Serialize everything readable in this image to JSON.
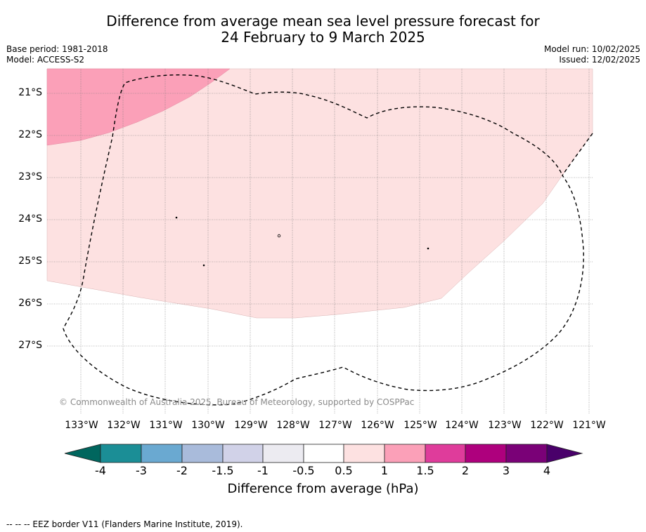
{
  "title_line1": "Difference from average mean sea level pressure forecast for",
  "title_line2": "24 February to 9 March 2025",
  "meta_left": [
    "Base period: 1981-2018",
    "Model: ACCESS-S2"
  ],
  "meta_right": [
    "Model run: 10/02/2025",
    "Issued: 12/02/2025"
  ],
  "copyright": "© Commonwealth of Australia 2025, Bureau of Meteorology, supported by COSPPac",
  "lat_labels": [
    "21°S",
    "22°S",
    "23°S",
    "24°S",
    "25°S",
    "26°S",
    "27°S"
  ],
  "lon_labels": [
    "133°W",
    "132°W",
    "131°W",
    "130°W",
    "129°W",
    "128°W",
    "127°W",
    "126°W",
    "125°W",
    "124°W",
    "123°W",
    "122°W",
    "121°W"
  ],
  "colorbar": {
    "ticks": [
      "-4",
      "-3",
      "-2",
      "-1.5",
      "-1",
      "-0.5",
      "0.5",
      "1",
      "1.5",
      "2",
      "3",
      "4"
    ],
    "colors": [
      "#1b8e96",
      "#6aa9d1",
      "#a9bbdb",
      "#d1d2e8",
      "#ecebf1",
      "#ffffff",
      "#fde1e1",
      "#fba0b8",
      "#df3c9b",
      "#ae007d",
      "#7a0177"
    ],
    "under_color": "#00665e",
    "over_color": "#49006a",
    "label": "Difference from average (hPa)"
  },
  "map": {
    "ocean_color": "#ffffff",
    "fill_colors": {
      "band_0_5_to_1": "#fde1e1",
      "band_1_to_1_5": "#fba0b8"
    },
    "border_style": "dashed",
    "grid": true
  },
  "footer": "-- -- -- EEZ border V11 (Flanders Marine Institute, 2019)."
}
